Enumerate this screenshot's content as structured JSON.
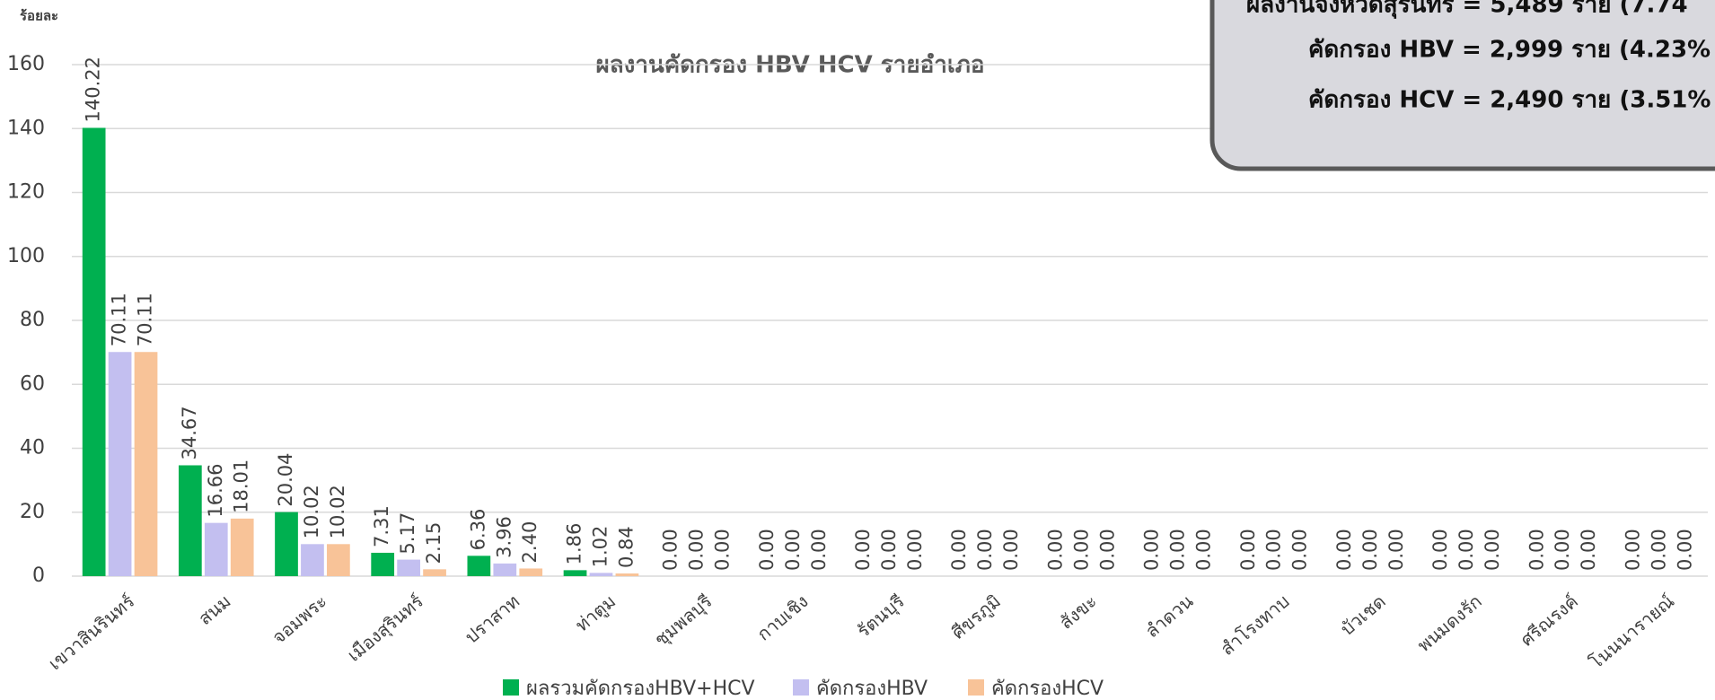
{
  "chart_data": {
    "type": "bar",
    "title": "ผลงานคัดกรอง HBV HCV รายอำเภอ",
    "y_label": "ร้อยละ",
    "annotations": [
      "ผลงานจังหวัดสุรินทร์ = 5,489 ราย (7.74",
      "คัดกรอง HBV = 2,999 ราย (4.23%",
      "คัดกรอง HCV = 2,490 ราย (3.51%"
    ],
    "categories": [
      "เขวาสินรินทร์",
      "สนม",
      "จอมพระ",
      "เมืองสุรินทร์",
      "ปราสาท",
      "ท่าตูม",
      "ชุมพลบุรี",
      "กาบเชิง",
      "รัตนบุรี",
      "ศีขรภูมิ",
      "สังขะ",
      "ลำดวน",
      "สำโรงทาบ",
      "บัวเชด",
      "พนมดงรัก",
      "ศรีณรงค์",
      "โนนนารายณ์"
    ],
    "series": [
      {
        "name": "ผลรวมคัดกรองHBV+HCV",
        "color": "#00b050",
        "values": [
          140.22,
          34.67,
          20.04,
          7.31,
          6.36,
          1.86,
          0,
          0,
          0,
          0,
          0,
          0,
          0,
          0,
          0,
          0,
          0
        ],
        "value_labels": [
          "140.22",
          "34.67",
          "20.04",
          "7.31",
          "6.36",
          "1.86",
          "0.00",
          "0.00",
          "0.00",
          "0.00",
          "0.00",
          "0.00",
          "0.00",
          "0.00",
          "0.00",
          "0.00",
          "0.00"
        ]
      },
      {
        "name": "คัดกรองHBV",
        "color": "#c3bff0",
        "values": [
          70.11,
          16.66,
          10.02,
          5.17,
          3.96,
          1.02,
          0,
          0,
          0,
          0,
          0,
          0,
          0,
          0,
          0,
          0,
          0
        ],
        "value_labels": [
          "70.11",
          "16.66",
          "10.02",
          "5.17",
          "3.96",
          "1.02",
          "0.00",
          "0.00",
          "0.00",
          "0.00",
          "0.00",
          "0.00",
          "0.00",
          "0.00",
          "0.00",
          "0.00",
          "0.00"
        ]
      },
      {
        "name": "คัดกรองHCV",
        "color": "#f8c398",
        "values": [
          70.11,
          18.01,
          10.02,
          2.15,
          2.4,
          0.84,
          0,
          0,
          0,
          0,
          0,
          0,
          0,
          0,
          0,
          0,
          0
        ],
        "value_labels": [
          "70.11",
          "18.01",
          "10.02",
          "2.15",
          "2.40",
          "0.84",
          "0.00",
          "0.00",
          "0.00",
          "0.00",
          "0.00",
          "0.00",
          "0.00",
          "0.00",
          "0.00",
          "0.00",
          "0.00"
        ]
      }
    ],
    "ylim": [
      0,
      160
    ],
    "yticks": [
      0,
      20,
      40,
      60,
      80,
      100,
      120,
      140,
      160
    ],
    "grid": true,
    "legend": "bottom"
  }
}
